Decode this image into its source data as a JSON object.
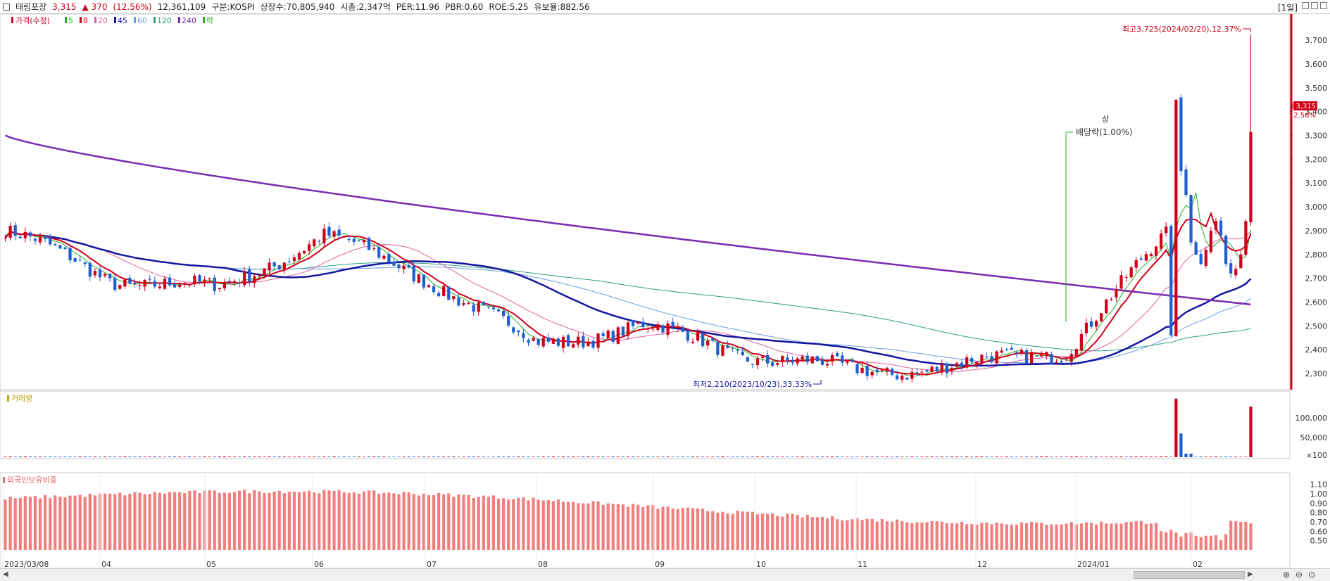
{
  "header": {
    "name": "태림포장",
    "price": "3,315",
    "change": "▲ 370",
    "change_pct": "(12.56%)",
    "volume": "12,361,109",
    "market": "구분:KOSPI",
    "shares": "상장수:70,805,940",
    "mcap": "시총:2,347억",
    "per": "PER:11.96",
    "pbr": "PBR:0.60",
    "roe": "ROE:5.25",
    "float": "유보율:882.56",
    "timeframe": "[1일]"
  },
  "legend": {
    "price_label": "가격(수정)",
    "ma": [
      "5",
      "8",
      "20",
      "45",
      "60",
      "120",
      "240"
    ],
    "ma_colors": [
      "#22b022",
      "#d0021b",
      "#e060a0",
      "#1515a0",
      "#6a9de0",
      "#2aa080",
      "#7b2cb0"
    ],
    "event_label": "락"
  },
  "annotations": {
    "high": "최고3,725(2024/02/20),12.37%",
    "low": "최저2,210(2023/10/23),33.33%",
    "dividend": "배당락(1.00%)",
    "limit_up": "상",
    "price_tag": "3,315",
    "price_tag_pct": "12.56%"
  },
  "volume_panel": {
    "title": "거래량",
    "ticks": [
      "100,000",
      "50,000",
      "×100"
    ],
    "values": [
      148000,
      60000,
      5000,
      3000
    ]
  },
  "foreign_panel": {
    "title": "외국인보유비중",
    "ticks": [
      "1.10",
      "1.00",
      "0.90",
      "0.80",
      "0.70",
      "0.60",
      "0.50"
    ]
  },
  "chart_data": {
    "type": "candlestick",
    "ylim": [
      2250,
      3780
    ],
    "yticks": [
      2300,
      2400,
      2500,
      2600,
      2700,
      2800,
      2900,
      3000,
      3100,
      3200,
      3300,
      3400,
      3500,
      3600,
      3700
    ],
    "xticks": [
      "2023/03/08",
      "04",
      "05",
      "06",
      "07",
      "08",
      "09",
      "10",
      "11",
      "12",
      "2024/01",
      "02"
    ],
    "monthly_close": [
      2900,
      2700,
      2650,
      2880,
      2700,
      2420,
      2500,
      2380,
      2310,
      2330,
      2400,
      2900,
      3315
    ],
    "ma240_start": 3300,
    "ma240_end": 2590
  }
}
